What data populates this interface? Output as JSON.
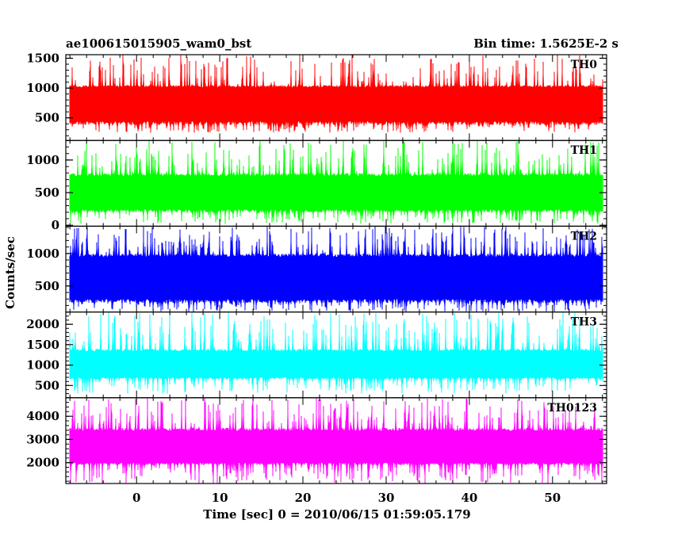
{
  "chart_data": {
    "type": "line",
    "title_left": "ae100615015905_wam0_bst",
    "title_right": "Bin time: 1.5625E-2 s",
    "xlabel": "Time [sec] 0 = 2010/06/15 01:59:05.179",
    "ylabel": "Counts/sec",
    "xlim": [
      -8.5,
      56.5
    ],
    "data_x_range": [
      -8.0,
      56.0
    ],
    "x_ticks": [
      0,
      10,
      20,
      30,
      40,
      50
    ],
    "x_tick_labels": [
      "0",
      "10",
      "20",
      "30",
      "40",
      "50"
    ],
    "x_minor_step": 2,
    "grid": false,
    "panels": [
      {
        "name": "TH0",
        "color": "#ff0000",
        "ylim": [
          120,
          1560
        ],
        "y_ticks": [
          500,
          1000,
          1500
        ],
        "y_tick_labels": [
          "500",
          "1000",
          "1500"
        ],
        "y_minor_step": 100,
        "series_mean": 800,
        "series_low": [
          250,
          380
        ],
        "series_high": [
          1050,
          1560
        ]
      },
      {
        "name": "TH1",
        "color": "#00ff00",
        "ylim": [
          -15,
          1300
        ],
        "y_ticks": [
          0,
          500,
          1000
        ],
        "y_tick_labels": [
          "0",
          "500",
          "1000"
        ],
        "y_minor_step": 100,
        "series_mean": 500,
        "series_low": [
          20,
          200
        ],
        "series_high": [
          800,
          1300
        ]
      },
      {
        "name": "TH2",
        "color": "#0000ff",
        "ylim": [
          100,
          1420
        ],
        "y_ticks": [
          500,
          1000
        ],
        "y_tick_labels": [
          "500",
          "1000"
        ],
        "y_minor_step": 100,
        "series_mean": 650,
        "series_low": [
          100,
          240
        ],
        "series_high": [
          1000,
          1420
        ]
      },
      {
        "name": "TH3",
        "color": "#00ffff",
        "ylim": [
          200,
          2300
        ],
        "y_ticks": [
          500,
          1000,
          1500,
          2000
        ],
        "y_tick_labels": [
          "500",
          "1000",
          "1500",
          "2000"
        ],
        "y_minor_step": 100,
        "series_mean": 1000,
        "series_low": [
          300,
          650
        ],
        "series_high": [
          1400,
          2300
        ]
      },
      {
        "name": "TH0123",
        "color": "#ff00ff",
        "ylim": [
          1100,
          4800
        ],
        "y_ticks": [
          2000,
          3000,
          4000
        ],
        "y_tick_labels": [
          "2000",
          "3000",
          "4000"
        ],
        "y_minor_step": 200,
        "series_mean": 2600,
        "series_low": [
          1100,
          1900
        ],
        "series_high": [
          3500,
          4800
        ]
      }
    ]
  }
}
